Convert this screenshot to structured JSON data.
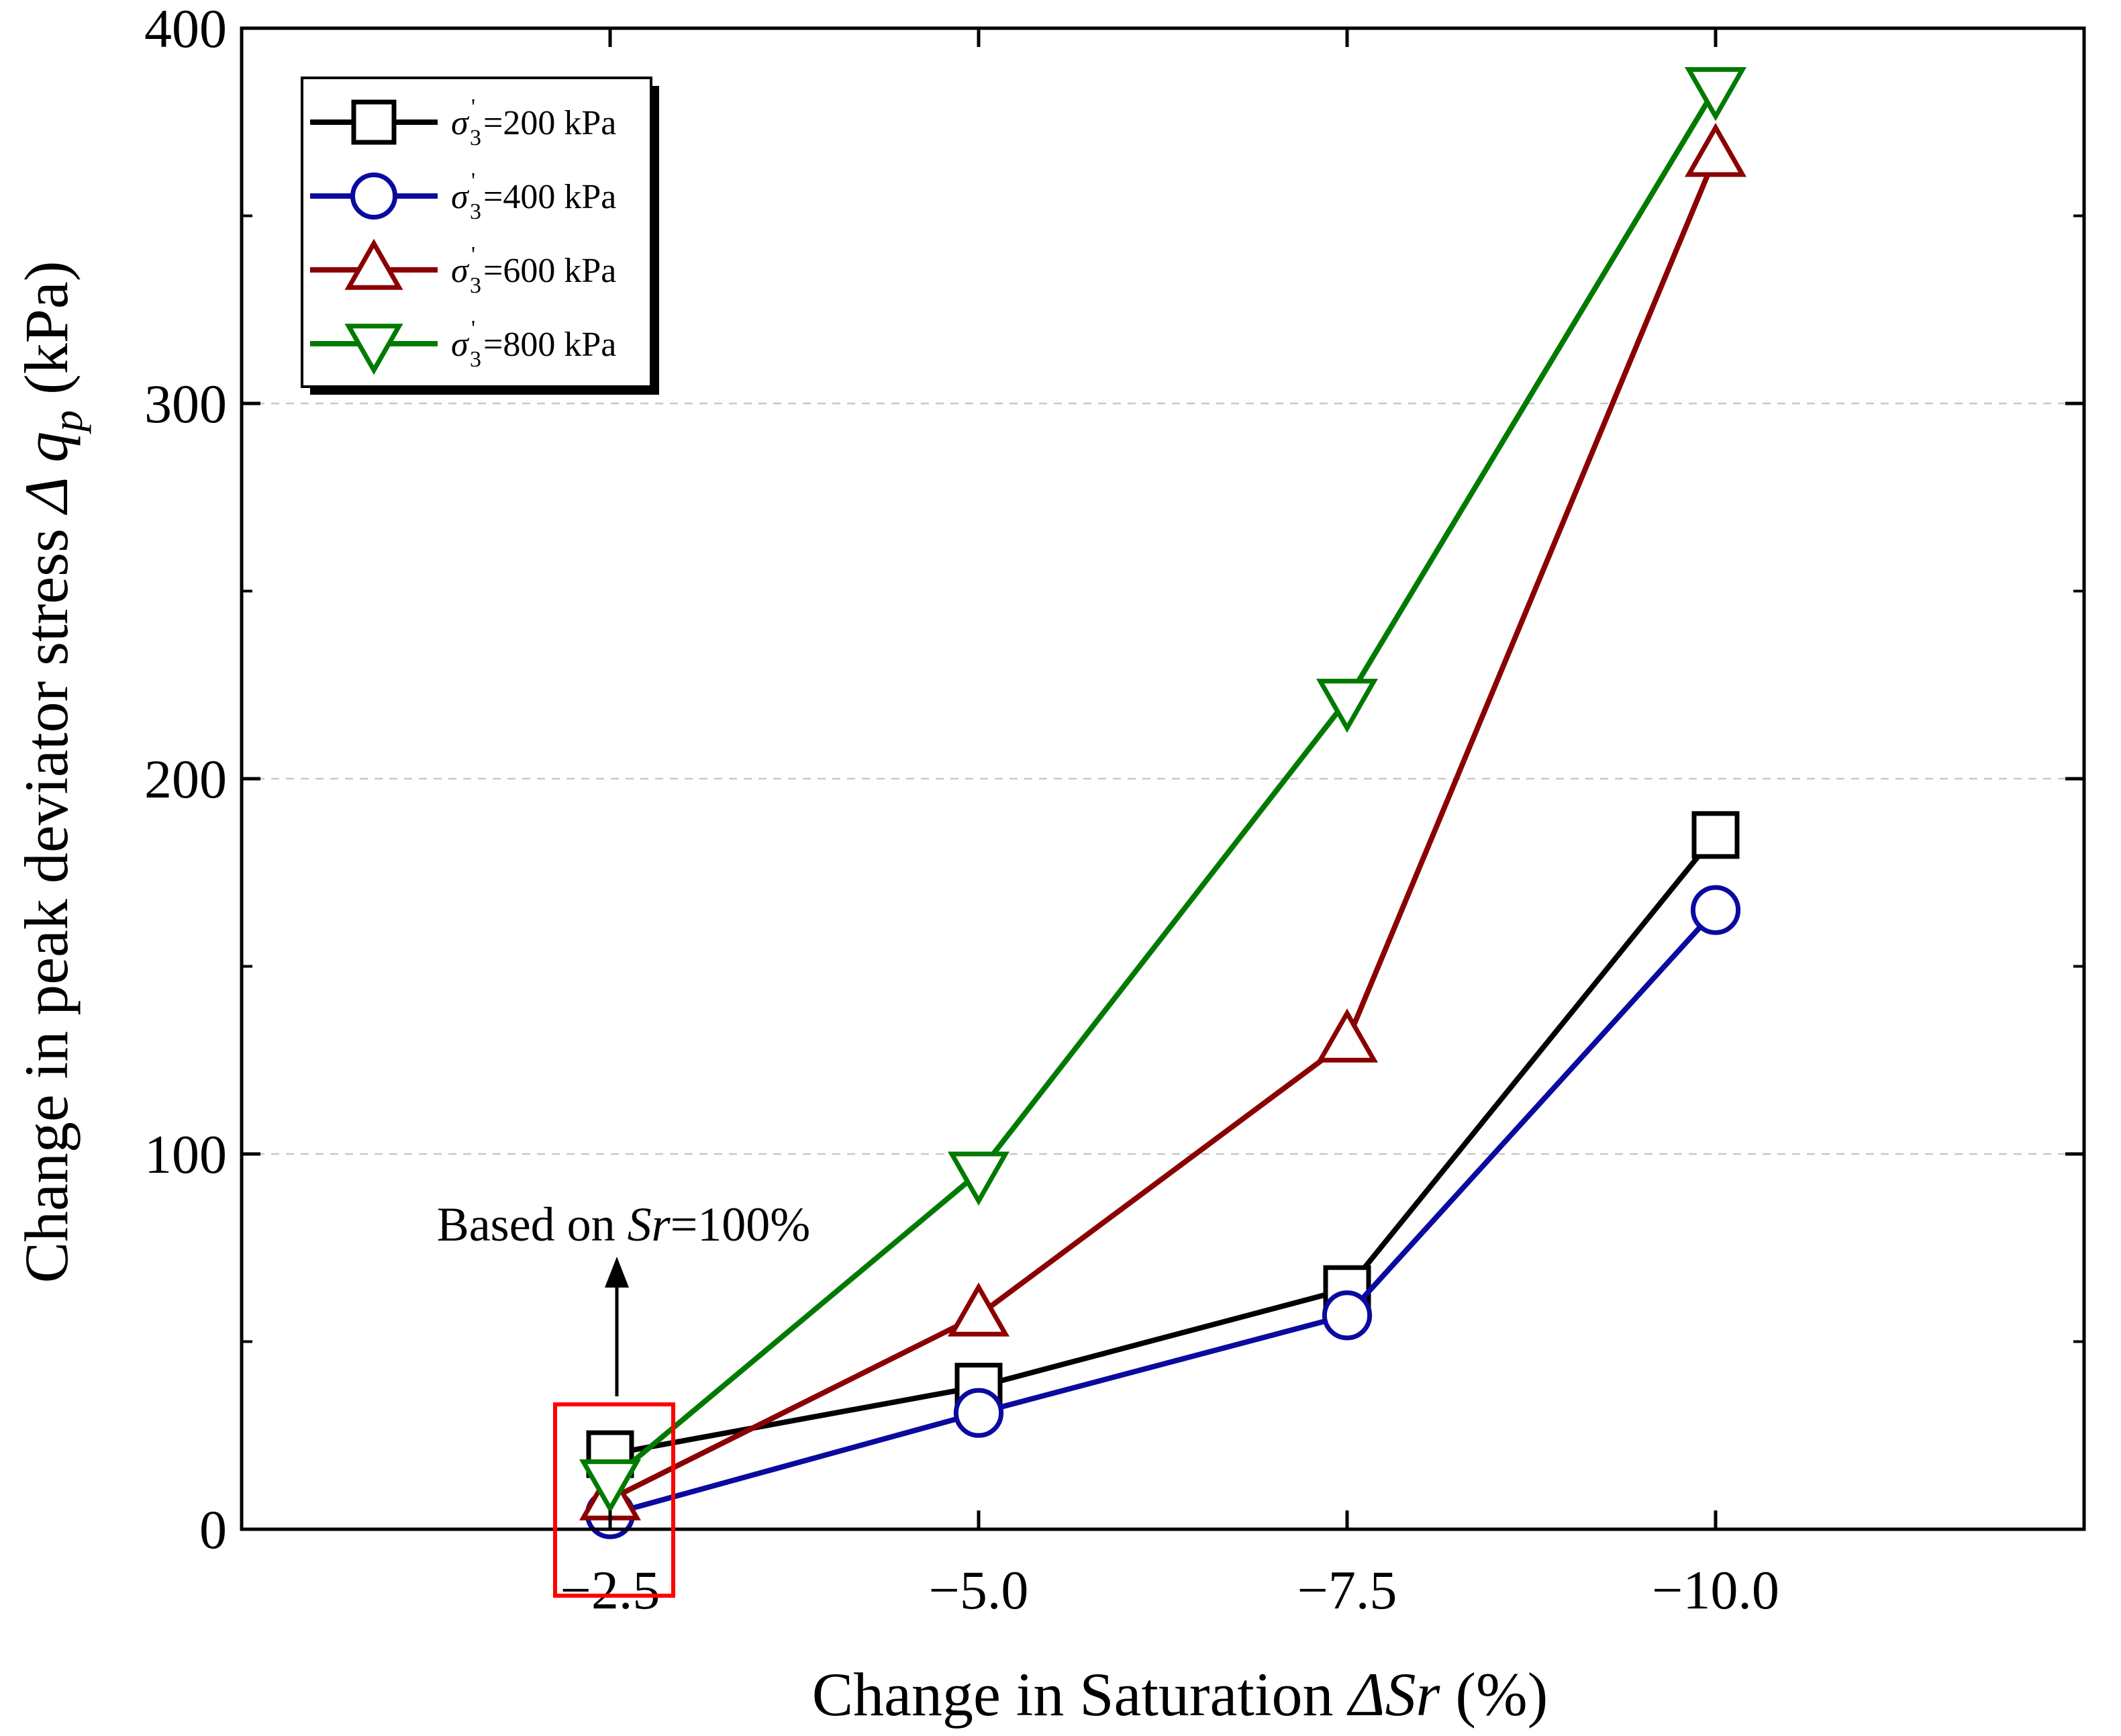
{
  "chart_data": {
    "type": "line",
    "x": [
      -2.5,
      -5.0,
      -7.5,
      -10.0
    ],
    "x_tick_labels": [
      "−2.5",
      "−5.0",
      "−7.5",
      "−10.0"
    ],
    "xlim": [
      0,
      -12.5
    ],
    "ylim": [
      0,
      400
    ],
    "y_ticks": [
      0,
      100,
      200,
      300,
      400
    ],
    "y_tick_labels": [
      "0",
      "100",
      "200",
      "300",
      "400"
    ],
    "xlabel": "Change in Saturation ΔSr (%)",
    "ylabel": "Change in peak deviator stress Δ qp (kPa)",
    "grid": "horizontal dashed",
    "legend_position": "top-left",
    "series": [
      {
        "name": "σ3'=200 kPa",
        "legend_value": "=200 kPa",
        "color": "#000000",
        "marker": "square",
        "values": [
          20,
          38,
          64,
          185
        ]
      },
      {
        "name": "σ3'=400 kPa",
        "legend_value": "=400 kPa",
        "color": "#0a0aa0",
        "marker": "circle",
        "values": [
          4,
          31,
          57,
          165
        ]
      },
      {
        "name": "σ3'=600 kPa",
        "legend_value": "=600 kPa",
        "color": "#8b0000",
        "marker": "triangle-up",
        "values": [
          8,
          57,
          130,
          366
        ]
      },
      {
        "name": "σ3'=800 kPa",
        "legend_value": "=800 kPa",
        "color": "#007a00",
        "marker": "triangle-down",
        "values": [
          13,
          95,
          221,
          384
        ]
      }
    ],
    "annotation": {
      "text_prefix": "Based on ",
      "text_italic": "Sr",
      "text_suffix": "=100%",
      "box_color": "#ff0000",
      "target_x": -2.5
    }
  }
}
